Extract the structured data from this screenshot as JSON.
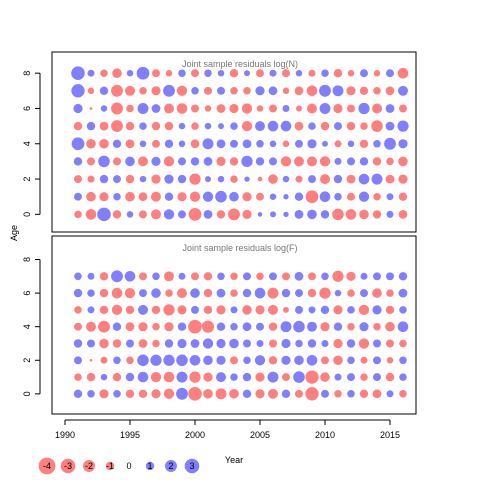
{
  "chart_data": {
    "type": "scatter",
    "subtype": "bubble-residuals",
    "xlabel": "Year",
    "ylabel": "Age",
    "xlim": [
      1989,
      2017
    ],
    "x_ticks": [
      1990,
      1995,
      2000,
      2005,
      2010,
      2015
    ],
    "y_ticks": [
      0,
      2,
      4,
      6,
      8
    ],
    "ages": [
      0,
      1,
      2,
      3,
      4,
      5,
      6,
      7,
      8
    ],
    "years": [
      1991,
      1992,
      1993,
      1994,
      1995,
      1996,
      1997,
      1998,
      1999,
      2000,
      2001,
      2002,
      2003,
      2004,
      2005,
      2006,
      2007,
      2008,
      2009,
      2010,
      2011,
      2012,
      2013,
      2014,
      2015,
      2016
    ],
    "colors": {
      "positive": "#0000ff",
      "negative": "#ff0000",
      "alpha": 0.5
    },
    "panels": [
      {
        "title": "Joint sample residuals log(N)",
        "ylim": [
          -1,
          9.2
        ],
        "residuals": [
          [
            -0.8,
            -1.6,
            2.6,
            -1.0,
            0.6,
            -0.9,
            -1.4,
            1.5,
            0.9,
            -2.3,
            1.1,
            -1.0,
            -2.0,
            -1.2,
            0.3,
            0.5,
            0.4,
            1.1,
            1.3,
            1.0,
            -1.9,
            -1.6,
            -1.3,
            -1.0,
            0.7,
            -1.1
          ],
          [
            0.9,
            -1.3,
            -1.2,
            0.8,
            -1.3,
            -1.1,
            -1.4,
            1.0,
            -1.2,
            -1.5,
            1.5,
            1.9,
            1.3,
            -1.2,
            -0.9,
            0.6,
            0.4,
            1.0,
            -2.3,
            1.6,
            0.8,
            -0.9,
            1.5,
            -0.8,
            0.7,
            -1.0
          ],
          [
            -0.9,
            -0.7,
            1.0,
            0.9,
            -1.0,
            0.6,
            -1.2,
            1.2,
            1.0,
            -1.8,
            0.5,
            0.6,
            -0.8,
            0.4,
            -0.3,
            -1.3,
            0.6,
            -0.7,
            0.9,
            -1.4,
            1.0,
            -1.1,
            1.6,
            1.7,
            -1.1,
            -1.2
          ],
          [
            1.0,
            -0.9,
            1.9,
            -0.9,
            1.3,
            -1.4,
            1.2,
            -1.5,
            0.9,
            1.0,
            1.1,
            -1.2,
            -1.0,
            1.8,
            1.0,
            0.9,
            -1.5,
            -1.4,
            -1.4,
            -1.5,
            0.7,
            0.9,
            1.0,
            -1.0,
            -0.8,
            -1.3
          ],
          [
            2.3,
            -1.3,
            -1.3,
            1.0,
            -1.1,
            0.6,
            -0.9,
            1.0,
            0.6,
            -1.1,
            1.7,
            1.1,
            0.9,
            1.1,
            0.8,
            0.6,
            -0.6,
            0.9,
            1.2,
            0.5,
            -0.7,
            0.6,
            -1.0,
            0.8,
            2.0,
            1.2
          ],
          [
            -1.0,
            1.0,
            -1.1,
            -2.0,
            -1.0,
            0.8,
            -1.0,
            -1.0,
            0.6,
            -0.8,
            0.6,
            0.5,
            0.8,
            -1.5,
            1.4,
            1.6,
            1.6,
            -1.1,
            0.8,
            -1.0,
            0.9,
            -1.0,
            -0.8,
            -1.9,
            1.1,
            1.8
          ],
          [
            1.2,
            -0.1,
            0.6,
            -2.0,
            -0.8,
            1.7,
            1.1,
            -1.4,
            -1.6,
            -0.9,
            -0.6,
            -1.1,
            -1.2,
            -1.5,
            -0.6,
            -0.9,
            0.7,
            -0.5,
            -1.4,
            1.7,
            -1.2,
            -0.9,
            1.8,
            -1.4,
            1.1,
            -0.9
          ],
          [
            2.5,
            -0.6,
            1.0,
            -2.0,
            -1.4,
            -0.8,
            -1.2,
            2.0,
            -1.5,
            0.8,
            -0.9,
            0.9,
            -0.8,
            -0.8,
            1.2,
            1.1,
            -0.6,
            -1.1,
            -1.6,
            2.0,
            1.7,
            -1.2,
            -1.0,
            -0.8,
            -1.1,
            1.4
          ],
          [
            2.6,
            0.7,
            -0.8,
            -1.3,
            0.6,
            2.3,
            -0.9,
            -0.6,
            0.8,
            -0.9,
            0.8,
            0.6,
            -1.0,
            0.5,
            -0.9,
            0.7,
            -0.9,
            0.6,
            -0.7,
            0.8,
            -1.0,
            -0.6,
            0.9,
            -0.6,
            0.9,
            -1.6
          ]
        ]
      },
      {
        "title": "Joint sample residuals log(F)",
        "ylim": [
          -1.2,
          9.4
        ],
        "residuals": [
          [
            1.0,
            0.8,
            -1.2,
            0.8,
            -1.0,
            -1.0,
            -1.2,
            -1.5,
            2.0,
            -2.6,
            -1.3,
            -1.7,
            -1.3,
            1.0,
            -1.2,
            -1.4,
            1.0,
            -0.9,
            -2.5,
            0.9,
            -0.8,
            0.8,
            -1.0,
            -1.1,
            0.7,
            -0.8
          ],
          [
            -0.8,
            -1.0,
            0.6,
            -1.0,
            1.0,
            1.6,
            -1.5,
            -1.6,
            1.7,
            -1.8,
            -1.2,
            1.4,
            0.8,
            1.0,
            -1.2,
            1.7,
            -0.9,
            1.9,
            -2.5,
            -1.3,
            0.7,
            0.9,
            -0.8,
            0.9,
            -1.0,
            0.8
          ],
          [
            0.9,
            -0.1,
            -0.7,
            0.8,
            -0.8,
            1.9,
            1.8,
            1.8,
            1.9,
            1.6,
            1.3,
            1.2,
            -0.9,
            0.8,
            1.5,
            -1.0,
            1.2,
            1.3,
            1.6,
            -0.9,
            -1.3,
            0.8,
            -0.7,
            0.9,
            -0.6,
            0.8
          ],
          [
            1.0,
            0.9,
            -1.3,
            -1.0,
            0.9,
            -1.1,
            -0.8,
            1.0,
            1.2,
            1.1,
            1.5,
            1.2,
            1.3,
            0.9,
            0.7,
            -0.9,
            1.2,
            0.8,
            1.0,
            0.7,
            -1.2,
            1.0,
            -1.5,
            0.9,
            -0.9,
            -0.8
          ],
          [
            -0.9,
            -1.4,
            -2.0,
            1.0,
            -1.1,
            -1.2,
            -0.8,
            -1.2,
            1.0,
            -2.6,
            -2.1,
            1.0,
            0.8,
            1.1,
            0.9,
            -1.0,
            1.7,
            1.9,
            1.4,
            -1.2,
            1.0,
            -0.8,
            1.2,
            -0.8,
            -1.3,
            1.6
          ],
          [
            -0.8,
            0.7,
            -1.0,
            -1.5,
            -1.0,
            1.4,
            -1.0,
            -1.8,
            -1.2,
            0.9,
            -1.0,
            -1.2,
            0.7,
            -1.3,
            -1.2,
            -1.4,
            -0.5,
            0.9,
            0.7,
            1.0,
            -1.2,
            0.8,
            -1.5,
            1.2,
            -1.0,
            0.8
          ],
          [
            1.0,
            0.8,
            -1.0,
            -1.6,
            -1.5,
            0.9,
            1.3,
            -0.8,
            -1.4,
            1.3,
            -1.0,
            1.1,
            -0.8,
            1.0,
            1.6,
            -1.7,
            1.0,
            0.9,
            -1.0,
            -1.8,
            0.6,
            -0.8,
            0.9,
            -1.3,
            -0.8,
            1.1
          ],
          [
            0.8,
            0.7,
            -1.0,
            2.0,
            1.6,
            -0.9,
            0.8,
            -1.4,
            0.7,
            -0.9,
            -1.0,
            0.8,
            -0.8,
            0.9,
            -0.8,
            0.9,
            -0.9,
            1.1,
            -0.9,
            0.8,
            -1.8,
            -1.2,
            0.7,
            0.9,
            0.9,
            1.0
          ],
          [
            0,
            0,
            0,
            0,
            0,
            0,
            0,
            0,
            0,
            0,
            0,
            0,
            0,
            0,
            0,
            0,
            0,
            0,
            0,
            0,
            0,
            0,
            0,
            0,
            0,
            0
          ]
        ]
      }
    ],
    "legend": {
      "placement": "bottom-left",
      "values": [
        -4,
        -3,
        -2,
        -1,
        0,
        1,
        2,
        3
      ],
      "labels": [
        "-4",
        "-3",
        "-2",
        "-1",
        "0",
        "1",
        "2",
        "3"
      ]
    }
  }
}
